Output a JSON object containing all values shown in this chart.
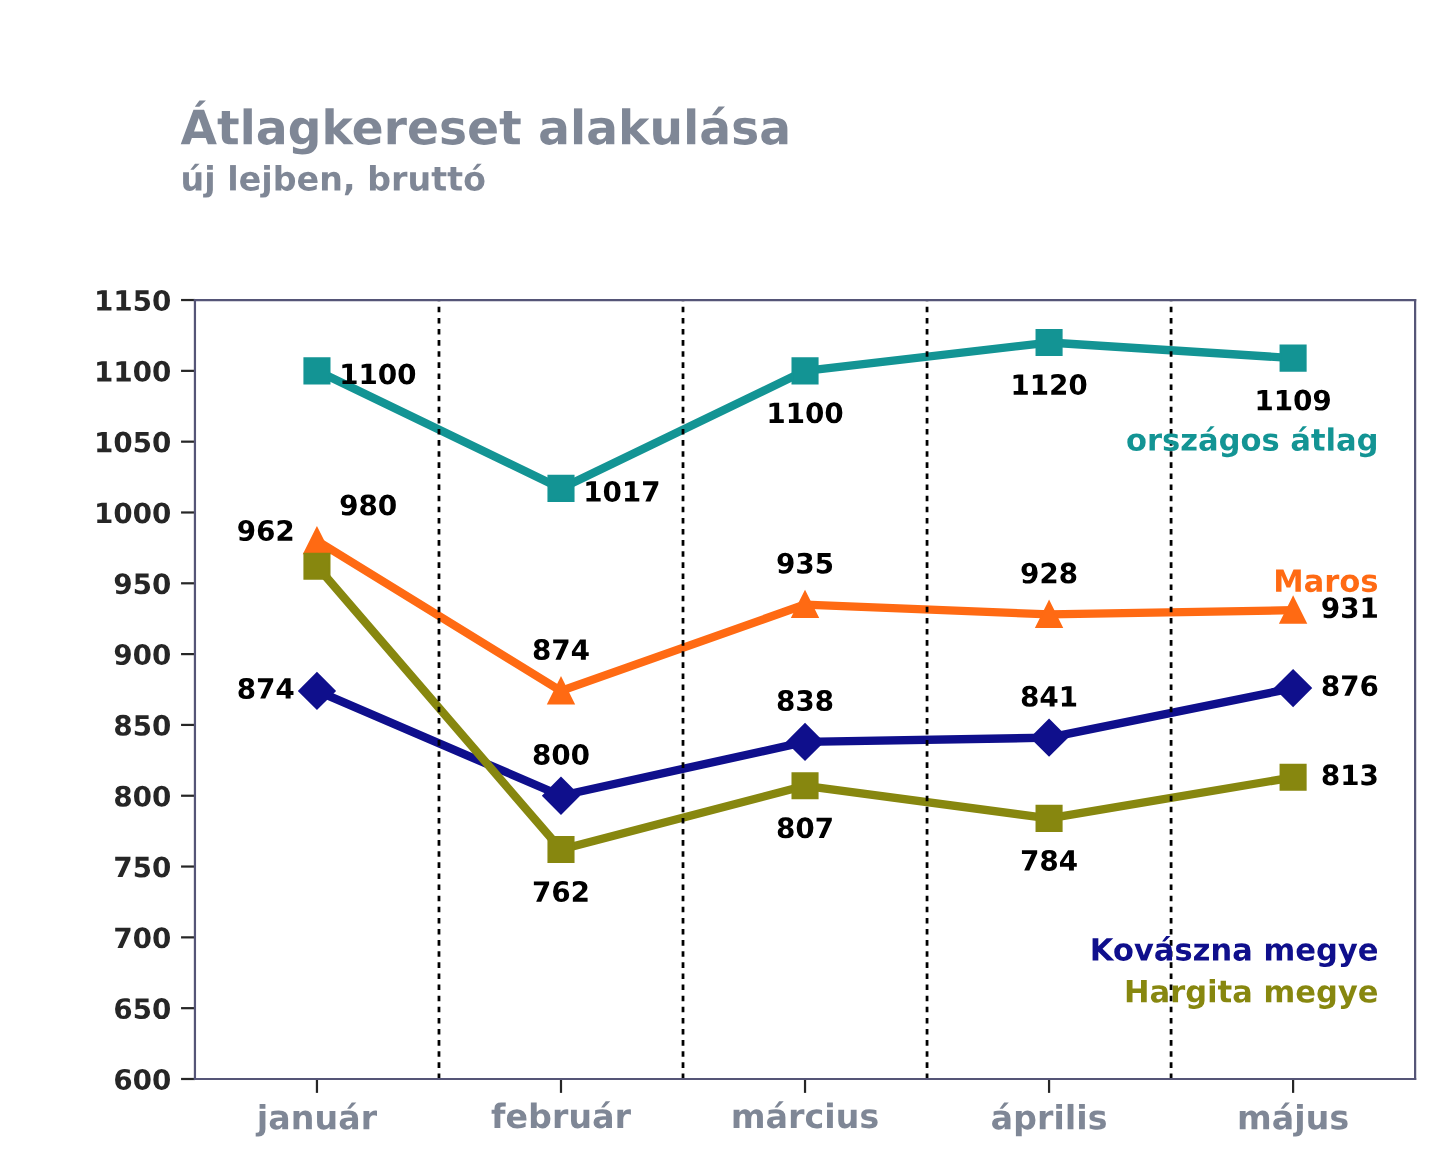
{
  "chart_data": {
    "type": "line",
    "title": "Átlagkereset alakulása",
    "subtitle": "új lejben, bruttó",
    "categories": [
      "január",
      "február",
      "március",
      "április",
      "május"
    ],
    "series": [
      {
        "name": "országos átlag",
        "color": "#139494",
        "marker": "square",
        "values": [
          1100,
          1017,
          1100,
          1120,
          1109
        ]
      },
      {
        "name": "Maros",
        "color": "#ff6a13",
        "marker": "triangle",
        "values": [
          980,
          874,
          935,
          928,
          931
        ]
      },
      {
        "name": "Kovászna megye",
        "color": "#0f0f8c",
        "marker": "diamond",
        "values": [
          874,
          800,
          838,
          841,
          876
        ]
      },
      {
        "name": "Hargita megye",
        "color": "#87870f",
        "marker": "square",
        "values": [
          962,
          762,
          807,
          784,
          813
        ]
      }
    ],
    "ylim": [
      600,
      1150
    ],
    "yticks": [
      600,
      650,
      700,
      750,
      800,
      850,
      900,
      950,
      1000,
      1050,
      1100,
      1150
    ],
    "grid": "x",
    "data_labels": true,
    "legend": false,
    "line_style": "solid"
  }
}
